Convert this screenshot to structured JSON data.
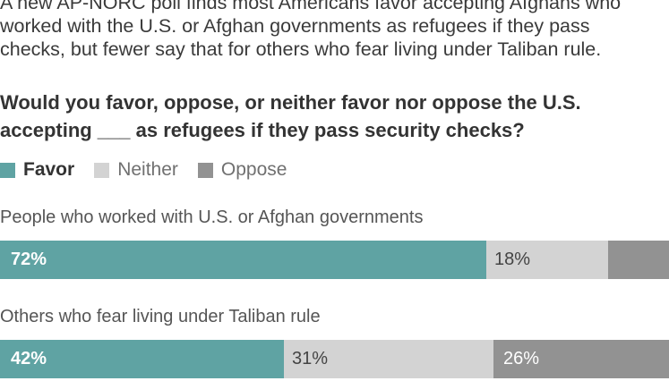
{
  "intro": {
    "lines": [
      "A new AP-NORC poll finds most Americans favor accepting Afghans who",
      "worked with the U.S. or Afghan governments as refugees if they pass",
      "checks, but fewer say that for others who fear living under Taliban rule."
    ]
  },
  "question": {
    "lines": [
      "Would you favor, oppose, or neither favor nor oppose the U.S.",
      "accepting ___ as refugees if they pass security checks?"
    ]
  },
  "colors": {
    "favor": "#5fa3a3",
    "neither": "#d3d3d3",
    "oppose": "#929292"
  },
  "chart_data": {
    "type": "bar",
    "orientation": "horizontal",
    "stacked": true,
    "legend_position": "top-left",
    "legend": [
      "Favor",
      "Neither",
      "Oppose"
    ],
    "categories": [
      "People who worked with U.S. or Afghan governments",
      "Others who fear living under Taliban rule"
    ],
    "series": [
      {
        "name": "Favor",
        "values": [
          72,
          42
        ],
        "labels": [
          "72%",
          "42%"
        ]
      },
      {
        "name": "Neither",
        "values": [
          18,
          31
        ],
        "labels": [
          "18%",
          "31%"
        ]
      },
      {
        "name": "Oppose",
        "values": [
          9,
          26
        ],
        "labels": [
          "",
          "26%"
        ]
      }
    ]
  }
}
